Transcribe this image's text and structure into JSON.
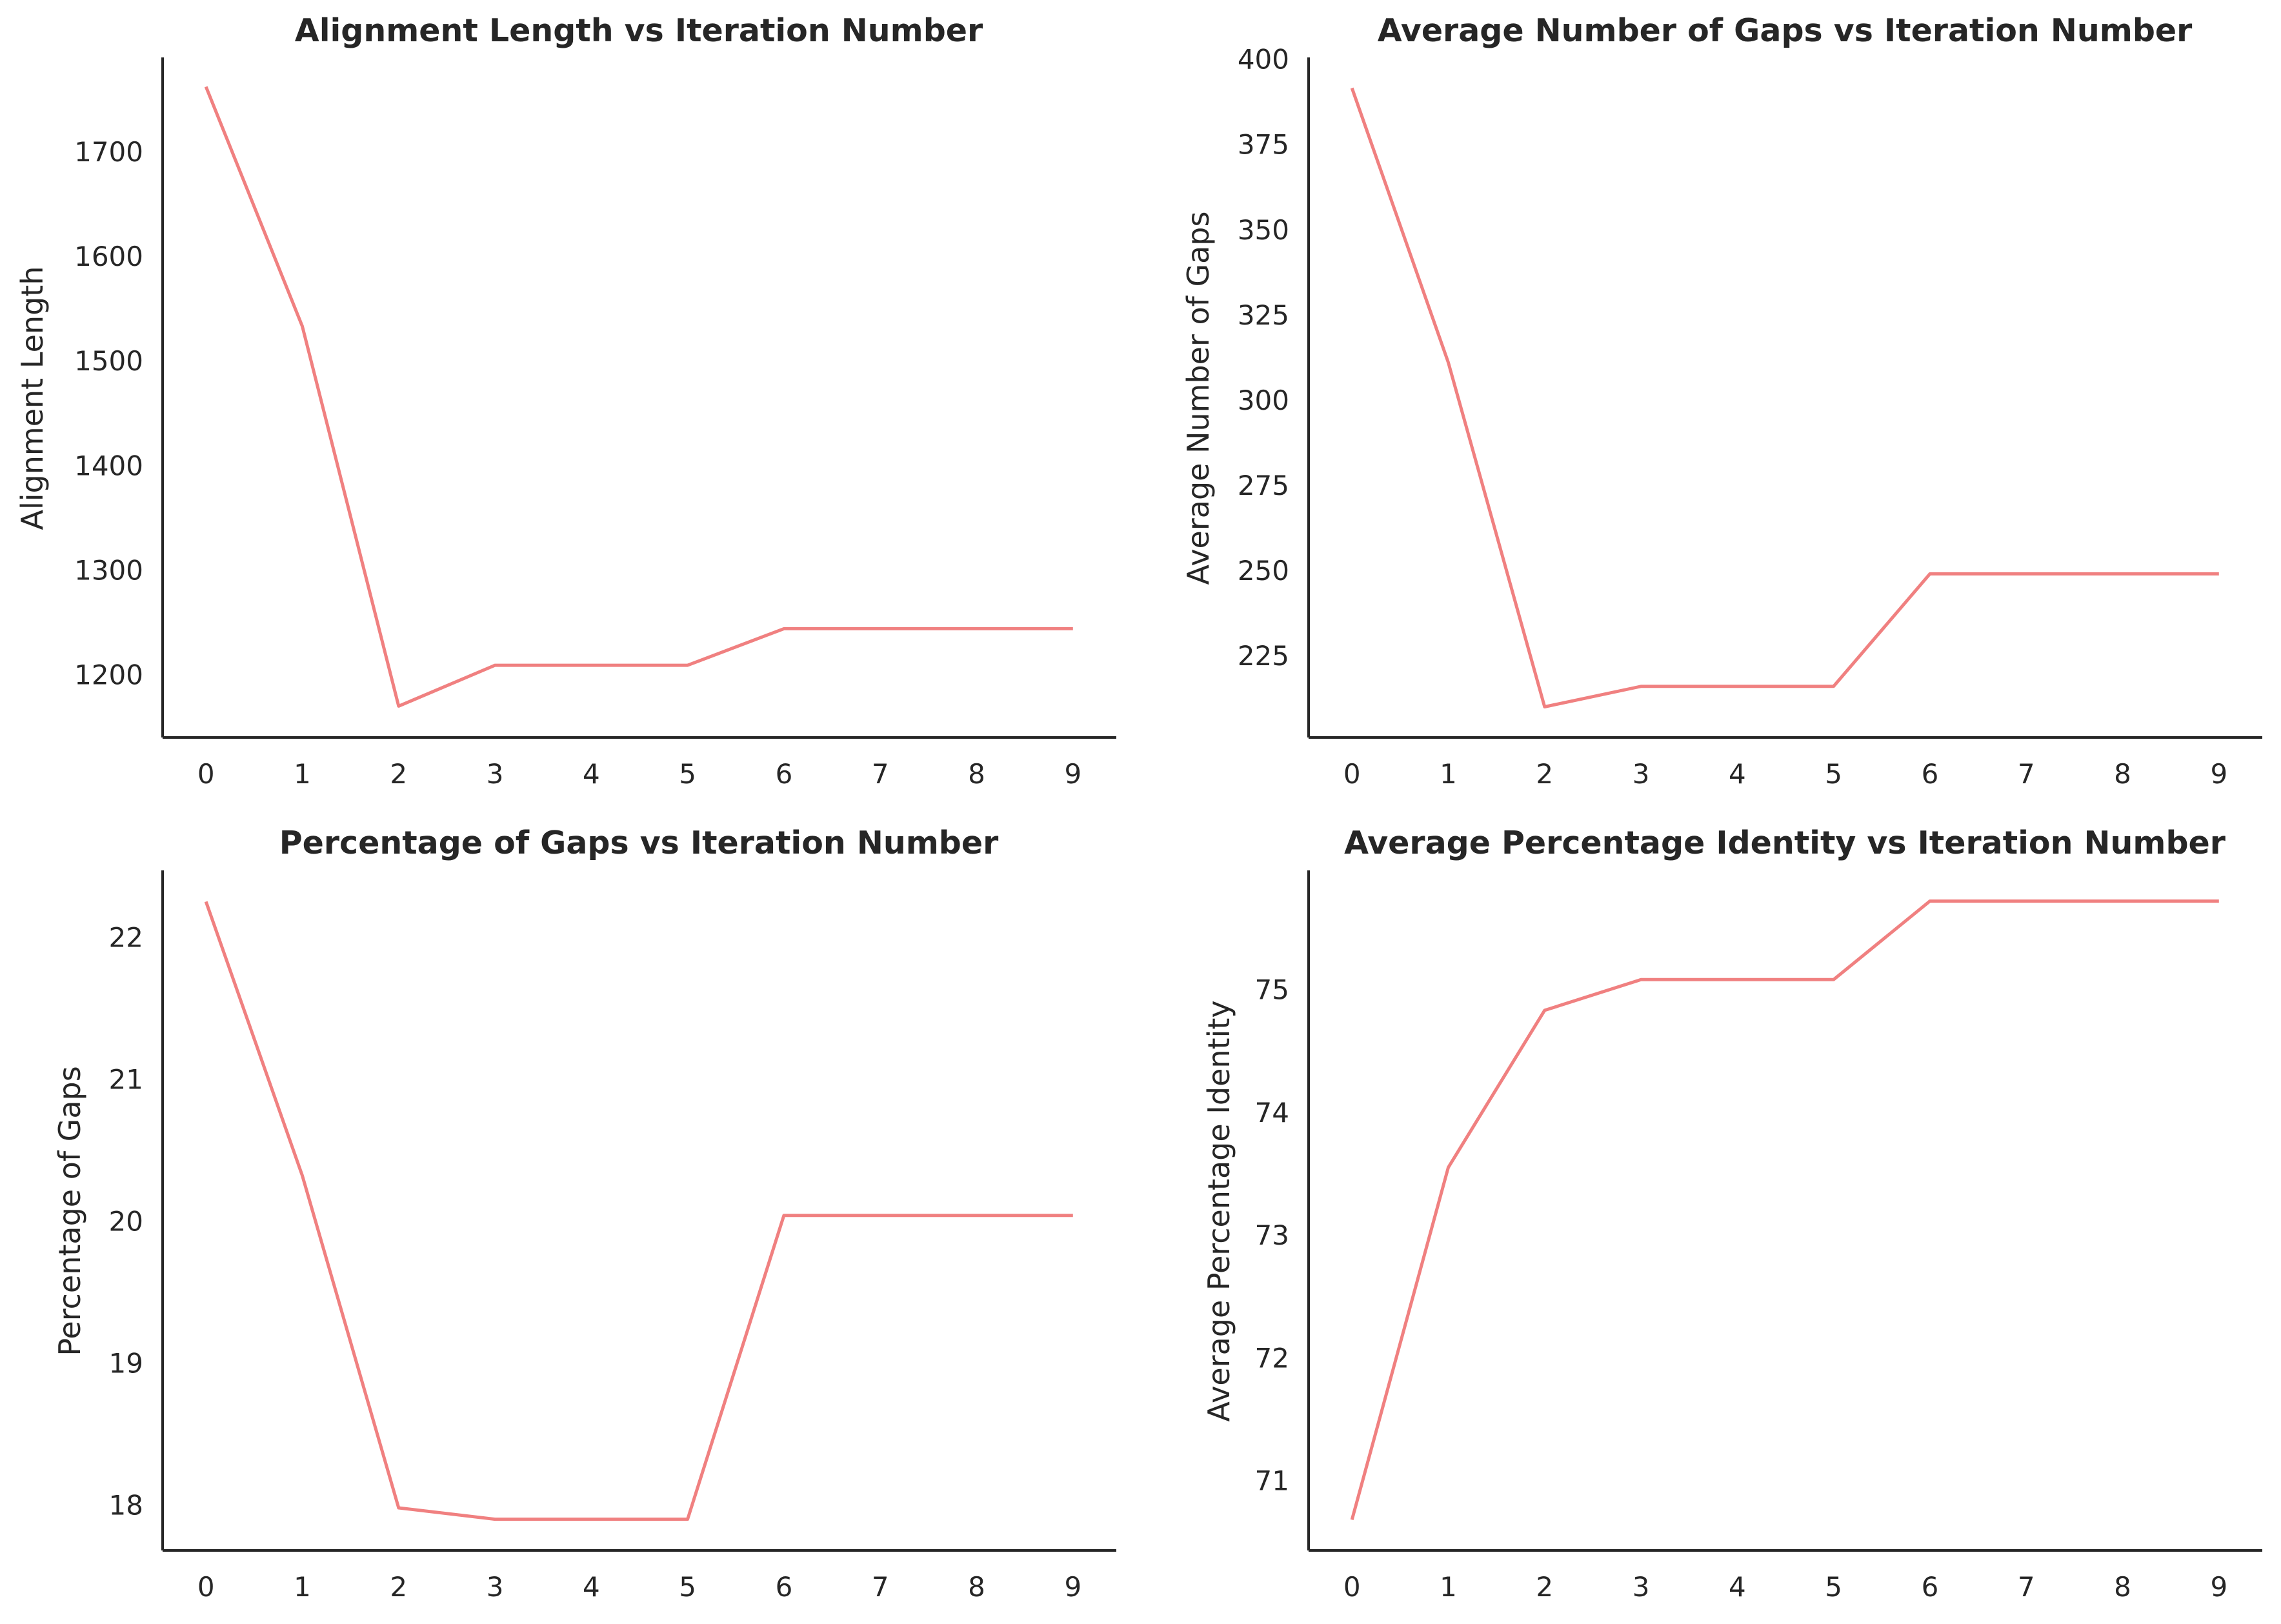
{
  "line_color": "#F08080",
  "text_color": "#262626",
  "chart_data": [
    {
      "type": "line",
      "title": "Alignment Length vs Iteration Number",
      "xlabel": "",
      "ylabel": "Alignment Length",
      "x": [
        0,
        1,
        2,
        3,
        4,
        5,
        6,
        7,
        8,
        9
      ],
      "xticks": [
        "0",
        "1",
        "2",
        "3",
        "4",
        "5",
        "6",
        "7",
        "8",
        "9"
      ],
      "y": [
        1762,
        1533,
        1170,
        1209,
        1209,
        1209,
        1244,
        1244,
        1244,
        1244
      ],
      "yticks": [
        1200,
        1300,
        1400,
        1500,
        1600,
        1700
      ],
      "ylim": [
        1140,
        1790
      ],
      "grid": false
    },
    {
      "type": "line",
      "title": "Average Number of Gaps vs Iteration Number",
      "xlabel": "",
      "ylabel": "Average Number of Gaps",
      "x": [
        0,
        1,
        2,
        3,
        4,
        5,
        6,
        7,
        8,
        9
      ],
      "xticks": [
        "0",
        "1",
        "2",
        "3",
        "4",
        "5",
        "6",
        "7",
        "8",
        "9"
      ],
      "y": [
        391.5,
        311,
        210,
        216,
        216,
        216,
        249,
        249,
        249,
        249
      ],
      "yticks": [
        225,
        250,
        275,
        300,
        325,
        350,
        375,
        400
      ],
      "ylim": [
        201,
        400.5
      ],
      "grid": false
    },
    {
      "type": "line",
      "title": "Percentage of Gaps vs Iteration Number",
      "xlabel": "",
      "ylabel": "Percentage of Gaps",
      "x": [
        0,
        1,
        2,
        3,
        4,
        5,
        6,
        7,
        8,
        9
      ],
      "xticks": [
        "0",
        "1",
        "2",
        "3",
        "4",
        "5",
        "6",
        "7",
        "8",
        "9"
      ],
      "y": [
        22.25,
        20.32,
        17.98,
        17.9,
        17.9,
        17.9,
        20.04,
        20.04,
        20.04,
        20.04
      ],
      "yticks": [
        18,
        19,
        20,
        21,
        22
      ],
      "ylim": [
        17.68,
        22.47
      ],
      "grid": false
    },
    {
      "type": "line",
      "title": "Average Percentage Identity vs Iteration Number",
      "xlabel": "",
      "ylabel": "Average Percentage Identity",
      "x": [
        0,
        1,
        2,
        3,
        4,
        5,
        6,
        7,
        8,
        9
      ],
      "xticks": [
        "0",
        "1",
        "2",
        "3",
        "4",
        "5",
        "6",
        "7",
        "8",
        "9"
      ],
      "y": [
        70.68,
        73.55,
        74.83,
        75.08,
        75.08,
        75.08,
        75.72,
        75.72,
        75.72,
        75.72
      ],
      "yticks": [
        71,
        72,
        73,
        74,
        75
      ],
      "ylim": [
        70.43,
        75.97
      ],
      "grid": false
    }
  ]
}
